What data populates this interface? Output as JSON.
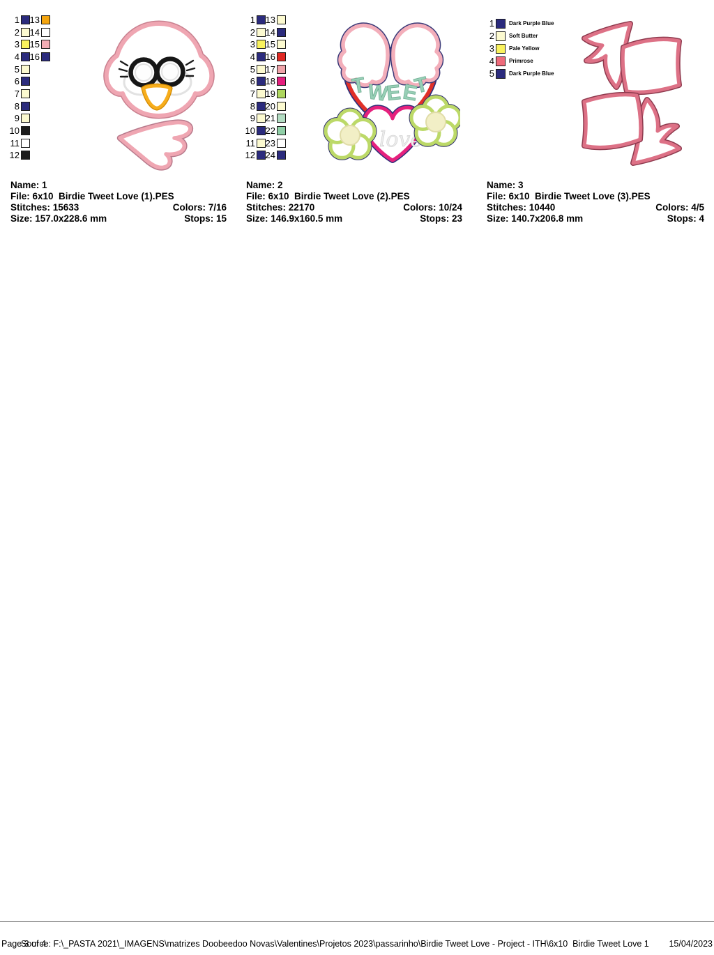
{
  "footer": {
    "page_label": "Page 3 of 4",
    "source": "Source: F:\\_PASTA 2021\\_IMAGENS\\matrizes Doobeedoo Novas\\Valentines\\Projetos 2023\\passarinho\\Birdie Tweet Love - Project - ITH\\6x10  Birdie Tweet Love 1",
    "date": "15/04/2023"
  },
  "colors": {
    "navy": "#2B2B7D",
    "cream": "#FCFAD0",
    "pale_yellow": "#F9F25D",
    "black": "#1C1C1C",
    "white": "#FFFFFF",
    "orange": "#F4A50F",
    "pink": "#F2ADB5",
    "red": "#E02823",
    "salmon": "#EFA3A9",
    "magenta": "#E51E7E",
    "yellow_green": "#AED75F",
    "light_seafoam": "#B2DCC2",
    "seafoam": "#90CFA7",
    "primrose": "#EE6B7B"
  },
  "designs": [
    {
      "name_label": "Name: 1",
      "file_label": "File: 6x10  Birdie Tweet Love (1).PES",
      "stitches_label": "Stitches: 15633",
      "colors_label": "Colors: 7/16",
      "size_label": "Size: 157.0x228.6 mm",
      "stops_label": "Stops: 15",
      "palette": [
        {
          "n": 1,
          "hex": "#2B2B7D"
        },
        {
          "n": 2,
          "hex": "#FCFAD0"
        },
        {
          "n": 3,
          "hex": "#F9F25D"
        },
        {
          "n": 4,
          "hex": "#2B2B7D"
        },
        {
          "n": 5,
          "hex": "#FCFAD0"
        },
        {
          "n": 6,
          "hex": "#2B2B7D"
        },
        {
          "n": 7,
          "hex": "#FCFAD0"
        },
        {
          "n": 8,
          "hex": "#2B2B7D"
        },
        {
          "n": 9,
          "hex": "#FCFAD0"
        },
        {
          "n": 10,
          "hex": "#1C1C1C"
        },
        {
          "n": 11,
          "hex": "#FFFFFF"
        },
        {
          "n": 12,
          "hex": "#1C1C1C"
        },
        {
          "n": 13,
          "hex": "#F4A50F"
        },
        {
          "n": 14,
          "hex": "#FFFFFF"
        },
        {
          "n": 15,
          "hex": "#F2ADB5"
        },
        {
          "n": 16,
          "hex": "#2B2B7D"
        }
      ]
    },
    {
      "name_label": "Name: 2",
      "file_label": "File: 6x10  Birdie Tweet Love (2).PES",
      "stitches_label": "Stitches: 22170",
      "colors_label": "Colors: 10/24",
      "size_label": "Size: 146.9x160.5 mm",
      "stops_label": "Stops: 23",
      "preview_words": {
        "tweet": "TWEET",
        "love": "love"
      },
      "palette": [
        {
          "n": 1,
          "hex": "#2B2B7D"
        },
        {
          "n": 2,
          "hex": "#FCFAD0"
        },
        {
          "n": 3,
          "hex": "#F9F25D"
        },
        {
          "n": 4,
          "hex": "#2B2B7D"
        },
        {
          "n": 5,
          "hex": "#FCFAD0"
        },
        {
          "n": 6,
          "hex": "#2B2B7D"
        },
        {
          "n": 7,
          "hex": "#FCFAD0"
        },
        {
          "n": 8,
          "hex": "#2B2B7D"
        },
        {
          "n": 9,
          "hex": "#FCFAD0"
        },
        {
          "n": 10,
          "hex": "#2B2B7D"
        },
        {
          "n": 11,
          "hex": "#FCFAD0"
        },
        {
          "n": 12,
          "hex": "#2B2B7D"
        },
        {
          "n": 13,
          "hex": "#FCFAD0"
        },
        {
          "n": 14,
          "hex": "#2B2B7D"
        },
        {
          "n": 15,
          "hex": "#FCFAD0"
        },
        {
          "n": 16,
          "hex": "#E02823"
        },
        {
          "n": 17,
          "hex": "#EFA3A9"
        },
        {
          "n": 18,
          "hex": "#E51E7E"
        },
        {
          "n": 19,
          "hex": "#AED75F"
        },
        {
          "n": 20,
          "hex": "#FCFAD0"
        },
        {
          "n": 21,
          "hex": "#B2DCC2"
        },
        {
          "n": 22,
          "hex": "#90CFA7"
        },
        {
          "n": 23,
          "hex": "#FFFFFF"
        },
        {
          "n": 24,
          "hex": "#2B2B7D"
        }
      ]
    },
    {
      "name_label": "Name: 3",
      "file_label": "File: 6x10  Birdie Tweet Love (3).PES",
      "stitches_label": "Stitches: 10440",
      "colors_label": "Colors: 4/5",
      "size_label": "Size: 140.7x206.8 mm",
      "stops_label": "Stops: 4",
      "palette": [
        {
          "n": 1,
          "hex": "#2B2B7D",
          "name": "Dark Purple Blue"
        },
        {
          "n": 2,
          "hex": "#FCFAD0",
          "name": "Soft Butter"
        },
        {
          "n": 3,
          "hex": "#F9F25D",
          "name": "Pale Yellow"
        },
        {
          "n": 4,
          "hex": "#EE6B7B",
          "name": "Primrose"
        },
        {
          "n": 5,
          "hex": "#2B2B7D",
          "name": "Dark Purple Blue"
        }
      ]
    }
  ]
}
